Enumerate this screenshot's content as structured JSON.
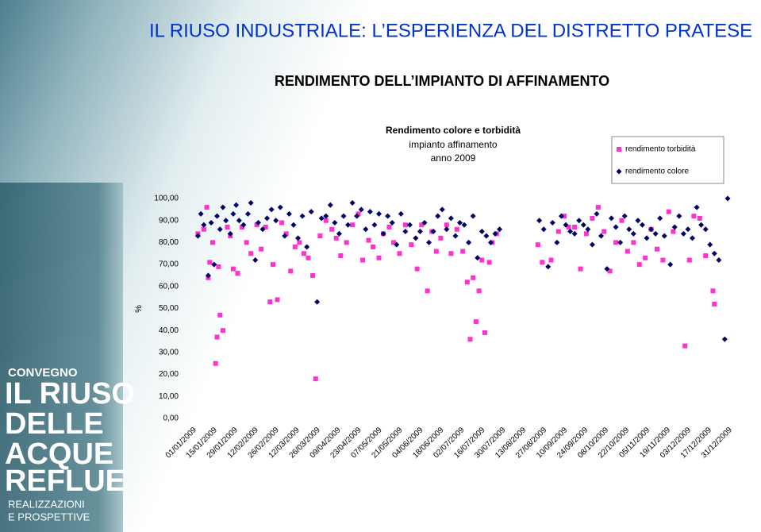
{
  "slide": {
    "title": "IL RIUSO INDUSTRIALE: L’ESPERIENZA DEL DISTRETTO PRATESE",
    "subtitle": "RENDIMENTO DELL’IMPIANTO DI AFFINAMENTO",
    "banner": [
      "CONVEGNO",
      "IL RIUSO",
      "DELLE",
      "ACQUE",
      "REFLUE",
      "REALIZZAZIONI",
      "E PROSPETTIVE"
    ]
  },
  "chart_data": {
    "type": "scatter",
    "title": [
      "Rendimento colore e torbidità",
      "impianto affinamento",
      "anno 2009"
    ],
    "y_label": "%",
    "legend": "top-right",
    "xlim": [
      "01/01/2009",
      "31/12/2009"
    ],
    "xticks": [
      "01/01/2009",
      "15/01/2009",
      "29/01/2009",
      "12/02/2009",
      "26/02/2009",
      "12/03/2009",
      "26/03/2009",
      "09/04/2009",
      "23/04/2009",
      "07/05/2009",
      "21/05/2009",
      "04/06/2009",
      "18/06/2009",
      "02/07/2009",
      "16/07/2009",
      "30/07/2009",
      "13/08/2009",
      "27/08/2009",
      "10/09/2009",
      "24/09/2009",
      "08/10/2009",
      "22/10/2009",
      "05/11/2009",
      "19/11/2009",
      "03/12/2009",
      "17/12/2009",
      "31/12/2009"
    ],
    "ylim": [
      0,
      100
    ],
    "yticks": [
      {
        "value": 0,
        "label": "0,00"
      },
      {
        "value": 10,
        "label": "10,00"
      },
      {
        "value": 20,
        "label": "20,00"
      },
      {
        "value": 30,
        "label": "30,00"
      },
      {
        "value": 40,
        "label": "40,00"
      },
      {
        "value": 50,
        "label": "50,00"
      },
      {
        "value": 60,
        "label": "60,00"
      },
      {
        "value": 70,
        "label": "70,00"
      },
      {
        "value": 80,
        "label": "80,00"
      },
      {
        "value": 90,
        "label": "90,00"
      },
      {
        "value": 100,
        "label": "100,00"
      }
    ],
    "series": [
      {
        "name": "rendimento torbidità",
        "color": "#ff33cc",
        "marker": "square",
        "x": [
          "05/01/2009",
          "09/01/2009",
          "11/01/2009",
          "12/01/2009",
          "13/01/2009",
          "15/01/2009",
          "17/01/2009",
          "18/01/2009",
          "19/01/2009",
          "20/01/2009",
          "22/01/2009",
          "25/01/2009",
          "27/01/2009",
          "29/01/2009",
          "01/02/2009",
          "04/02/2009",
          "07/02/2009",
          "10/02/2009",
          "14/02/2009",
          "17/02/2009",
          "20/02/2009",
          "23/02/2009",
          "25/02/2009",
          "28/02/2009",
          "03/03/2009",
          "06/03/2009",
          "09/03/2009",
          "12/03/2009",
          "15/03/2009",
          "18/03/2009",
          "21/03/2009",
          "24/03/2009",
          "26/03/2009",
          "29/03/2009",
          "02/04/2009",
          "06/04/2009",
          "09/04/2009",
          "12/04/2009",
          "16/04/2009",
          "20/04/2009",
          "24/04/2009",
          "27/04/2009",
          "01/05/2009",
          "04/05/2009",
          "08/05/2009",
          "11/05/2009",
          "15/05/2009",
          "18/05/2009",
          "22/05/2009",
          "26/05/2009",
          "30/05/2009",
          "03/06/2009",
          "06/06/2009",
          "10/06/2009",
          "13/06/2009",
          "16/06/2009",
          "19/06/2009",
          "23/06/2009",
          "26/06/2009",
          "30/06/2009",
          "04/07/2009",
          "07/07/2009",
          "09/07/2009",
          "11/07/2009",
          "13/07/2009",
          "15/07/2009",
          "17/07/2009",
          "19/07/2009",
          "22/07/2009",
          "24/07/2009",
          "27/07/2009",
          "24/08/2009",
          "27/08/2009",
          "02/09/2009",
          "07/09/2009",
          "11/09/2009",
          "14/09/2009",
          "18/09/2009",
          "22/09/2009",
          "26/09/2009",
          "30/09/2009",
          "04/10/2009",
          "08/10/2009",
          "12/10/2009",
          "16/10/2009",
          "20/10/2009",
          "24/10/2009",
          "28/10/2009",
          "01/11/2009",
          "05/11/2009",
          "09/11/2009",
          "13/11/2009",
          "17/11/2009",
          "21/11/2009",
          "24/11/2009",
          "02/12/2009",
          "05/12/2009",
          "08/12/2009",
          "12/12/2009",
          "16/12/2009",
          "21/12/2009",
          "22/12/2009"
        ],
        "values": [
          84,
          86,
          96,
          64,
          71,
          80,
          25,
          37,
          69,
          47,
          40,
          87,
          83,
          68,
          66,
          87,
          80,
          75,
          88,
          77,
          87,
          53,
          70,
          54,
          89,
          84,
          67,
          78,
          80,
          75,
          73,
          65,
          18,
          83,
          90,
          86,
          82,
          74,
          80,
          88,
          93,
          72,
          81,
          78,
          73,
          84,
          87,
          80,
          75,
          88,
          79,
          68,
          88,
          58,
          85,
          76,
          82,
          88,
          75,
          86,
          76,
          62,
          36,
          64,
          44,
          58,
          72,
          39,
          71,
          80,
          84,
          79,
          71,
          72,
          85,
          92,
          87,
          87,
          68,
          84,
          91,
          96,
          85,
          67,
          80,
          90,
          76,
          80,
          70,
          73,
          86,
          77,
          72,
          94,
          85,
          33,
          72,
          92,
          91,
          74,
          58,
          52
        ]
      },
      {
        "name": "rendimento colore",
        "color": "#000066",
        "marker": "diamond",
        "x": [
          "05/01/2009",
          "07/01/2009",
          "09/01/2009",
          "12/01/2009",
          "14/01/2009",
          "16/01/2009",
          "18/01/2009",
          "20/01/2009",
          "22/01/2009",
          "24/01/2009",
          "27/01/2009",
          "29/01/2009",
          "31/01/2009",
          "02/02/2009",
          "05/02/2009",
          "08/02/2009",
          "10/02/2009",
          "13/02/2009",
          "15/02/2009",
          "18/02/2009",
          "21/02/2009",
          "24/02/2009",
          "27/02/2009",
          "02/03/2009",
          "05/03/2009",
          "08/03/2009",
          "11/03/2009",
          "14/03/2009",
          "17/03/2009",
          "20/03/2009",
          "23/03/2009",
          "27/03/2009",
          "30/03/2009",
          "02/04/2009",
          "05/04/2009",
          "08/04/2009",
          "11/04/2009",
          "14/04/2009",
          "17/04/2009",
          "20/04/2009",
          "23/04/2009",
          "26/04/2009",
          "29/04/2009",
          "02/05/2009",
          "05/05/2009",
          "08/05/2009",
          "11/05/2009",
          "14/05/2009",
          "17/05/2009",
          "20/05/2009",
          "23/05/2009",
          "26/05/2009",
          "29/05/2009",
          "02/06/2009",
          "05/06/2009",
          "08/06/2009",
          "11/06/2009",
          "14/06/2009",
          "17/06/2009",
          "20/06/2009",
          "23/06/2009",
          "26/06/2009",
          "29/06/2009",
          "02/07/2009",
          "05/07/2009",
          "08/07/2009",
          "11/07/2009",
          "14/07/2009",
          "17/07/2009",
          "20/07/2009",
          "23/07/2009",
          "26/07/2009",
          "29/07/2009",
          "25/08/2009",
          "28/08/2009",
          "31/08/2009",
          "03/09/2009",
          "06/09/2009",
          "09/09/2009",
          "12/09/2009",
          "15/09/2009",
          "18/09/2009",
          "21/09/2009",
          "24/09/2009",
          "27/09/2009",
          "30/09/2009",
          "03/10/2009",
          "06/10/2009",
          "10/10/2009",
          "13/10/2009",
          "16/10/2009",
          "19/10/2009",
          "22/10/2009",
          "25/10/2009",
          "28/10/2009",
          "31/10/2009",
          "03/11/2009",
          "06/11/2009",
          "09/11/2009",
          "12/11/2009",
          "15/11/2009",
          "18/11/2009",
          "22/11/2009",
          "25/11/2009",
          "28/11/2009",
          "01/12/2009",
          "04/12/2009",
          "07/12/2009",
          "10/12/2009",
          "13/12/2009",
          "16/12/2009",
          "19/12/2009",
          "22/12/2009",
          "25/12/2009",
          "29/12/2009",
          "31/12/2009"
        ],
        "values": [
          83,
          93,
          88,
          65,
          89,
          70,
          92,
          86,
          96,
          90,
          84,
          93,
          97,
          90,
          88,
          93,
          98,
          72,
          89,
          86,
          91,
          95,
          90,
          96,
          83,
          93,
          88,
          82,
          92,
          78,
          94,
          53,
          91,
          92,
          97,
          89,
          84,
          92,
          88,
          98,
          92,
          95,
          86,
          94,
          88,
          93,
          84,
          92,
          89,
          79,
          93,
          85,
          88,
          82,
          85,
          89,
          80,
          85,
          92,
          95,
          86,
          91,
          83,
          89,
          88,
          80,
          92,
          73,
          85,
          83,
          80,
          84,
          86,
          90,
          86,
          69,
          89,
          80,
          92,
          88,
          85,
          84,
          90,
          88,
          86,
          79,
          93,
          83,
          68,
          91,
          87,
          80,
          92,
          86,
          84,
          90,
          88,
          82,
          86,
          84,
          91,
          83,
          70,
          87,
          92,
          84,
          86,
          82,
          96,
          88,
          86,
          79,
          75,
          72,
          36,
          100
        ]
      }
    ]
  }
}
